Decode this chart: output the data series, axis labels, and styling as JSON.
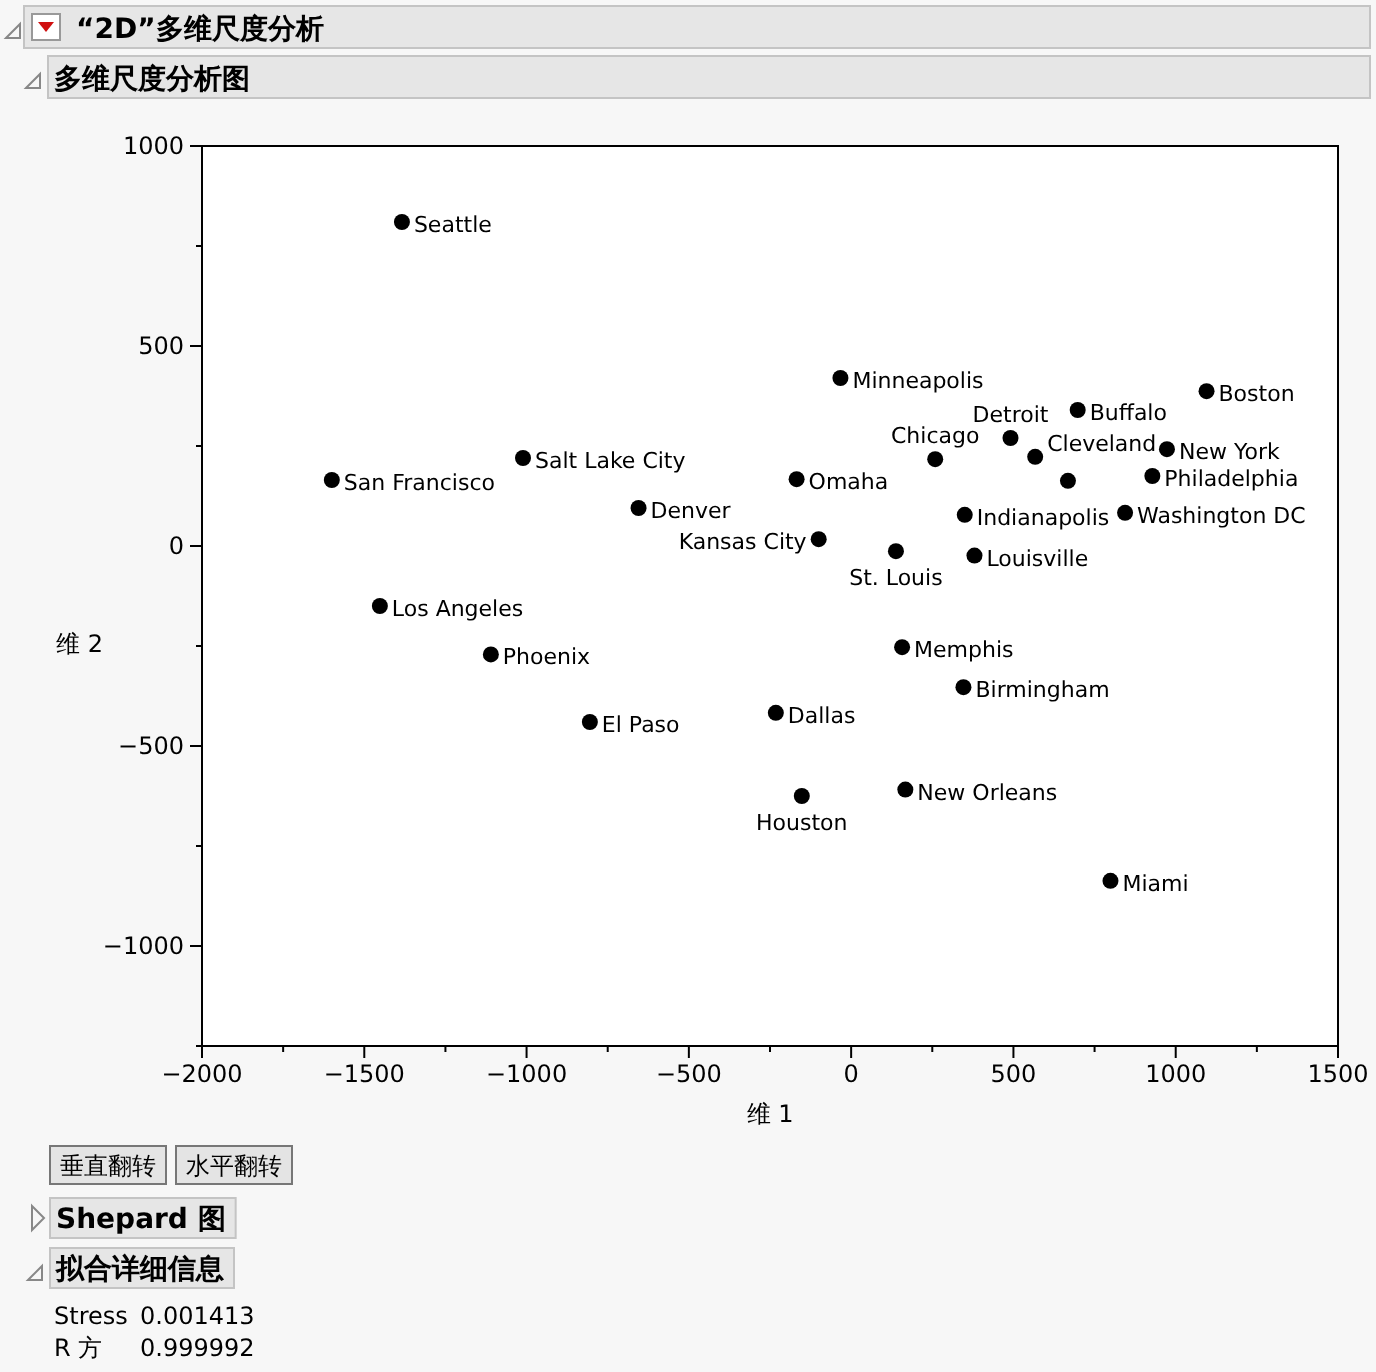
{
  "chart_data": {
    "type": "scatter",
    "title": "“2D”多维尺度分析",
    "subtitle": "多维尺度分析图",
    "xlabel": "维 1",
    "ylabel": "维 2",
    "xlim": [
      -2000,
      1500
    ],
    "ylim": [
      -1250,
      1000
    ],
    "xticks": [
      -2000,
      {
        "value": -1750,
        "label": null
      },
      -1500,
      {
        "value": -1250,
        "label": null
      },
      -1000,
      {
        "value": -750,
        "label": null
      },
      -500,
      {
        "value": -250,
        "label": null
      },
      0,
      {
        "value": 250,
        "label": null
      },
      500,
      {
        "value": 750,
        "label": null
      },
      1000,
      {
        "value": 1250,
        "label": null
      },
      1500
    ],
    "yticks": [
      {
        "value": -1250,
        "label": null
      },
      -1000,
      {
        "value": -750,
        "label": null
      },
      -500,
      {
        "value": -250,
        "label": null
      },
      0,
      {
        "value": 250,
        "label": null
      },
      500,
      {
        "value": 750,
        "label": null
      },
      1000
    ],
    "marker": "circle",
    "series": [
      {
        "color": "#000000",
        "x": [
          -1384,
          -1600,
          -1011,
          -655,
          -1452,
          -1110,
          -805,
          -232,
          -152,
          167,
          157,
          346,
          799,
          380,
          138,
          -33,
          -168,
          -100,
          259,
          491,
          567,
          668,
          698,
          1095,
          973,
          928,
          844,
          350
        ],
        "values": [
          810,
          165,
          220,
          95,
          -150,
          -271,
          -440,
          -417,
          -625,
          -609,
          -253,
          -353,
          -837,
          -24,
          -13,
          420,
          167,
          17,
          217,
          270,
          223,
          163,
          340,
          387,
          242,
          175,
          83,
          78
        ]
      }
    ],
    "annotations": [
      {
        "text": "Seattle",
        "x": -1384,
        "y": 810
      },
      {
        "text": "San Francisco",
        "x": -1600,
        "y": 165
      },
      {
        "text": "Salt Lake City",
        "x": -1011,
        "y": 220
      },
      {
        "text": "Denver",
        "x": -655,
        "y": 95
      },
      {
        "text": "Los Angeles",
        "x": -1452,
        "y": -150
      },
      {
        "text": "Phoenix",
        "x": -1110,
        "y": -271
      },
      {
        "text": "El Paso",
        "x": -805,
        "y": -440
      },
      {
        "text": "Dallas",
        "x": -232,
        "y": -417
      },
      {
        "text": "Houston",
        "x": -152,
        "y": -625
      },
      {
        "text": "New Orleans",
        "x": 167,
        "y": -609
      },
      {
        "text": "Memphis",
        "x": 157,
        "y": -253
      },
      {
        "text": "Birmingham",
        "x": 346,
        "y": -353
      },
      {
        "text": "Miami",
        "x": 799,
        "y": -837
      },
      {
        "text": "Louisville",
        "x": 380,
        "y": -24
      },
      {
        "text": "St. Louis",
        "x": 138,
        "y": -13
      },
      {
        "text": "Minneapolis",
        "x": -33,
        "y": 420
      },
      {
        "text": "Omaha",
        "x": -168,
        "y": 167
      },
      {
        "text": "Kansas City",
        "x": -100,
        "y": 17
      },
      {
        "text": "Chicago",
        "x": 259,
        "y": 217
      },
      {
        "text": "Detroit",
        "x": 491,
        "y": 270
      },
      {
        "text": "Cleveland",
        "x": 567,
        "y": 223
      },
      {
        "text": "Buffalo",
        "x": 698,
        "y": 340
      },
      {
        "text": "Boston",
        "x": 1095,
        "y": 387
      },
      {
        "text": "New York",
        "x": 973,
        "y": 242
      },
      {
        "text": "Philadelphia",
        "x": 928,
        "y": 175
      },
      {
        "text": "Washington DC",
        "x": 844,
        "y": 83
      },
      {
        "text": "Indianapolis",
        "x": 350,
        "y": 78
      },
      "垂直翻转",
      "水平翻转",
      "Shepard 图",
      "拟合详细信息",
      "Stress",
      "0.001413",
      "R 方",
      "0.999992"
    ]
  }
}
